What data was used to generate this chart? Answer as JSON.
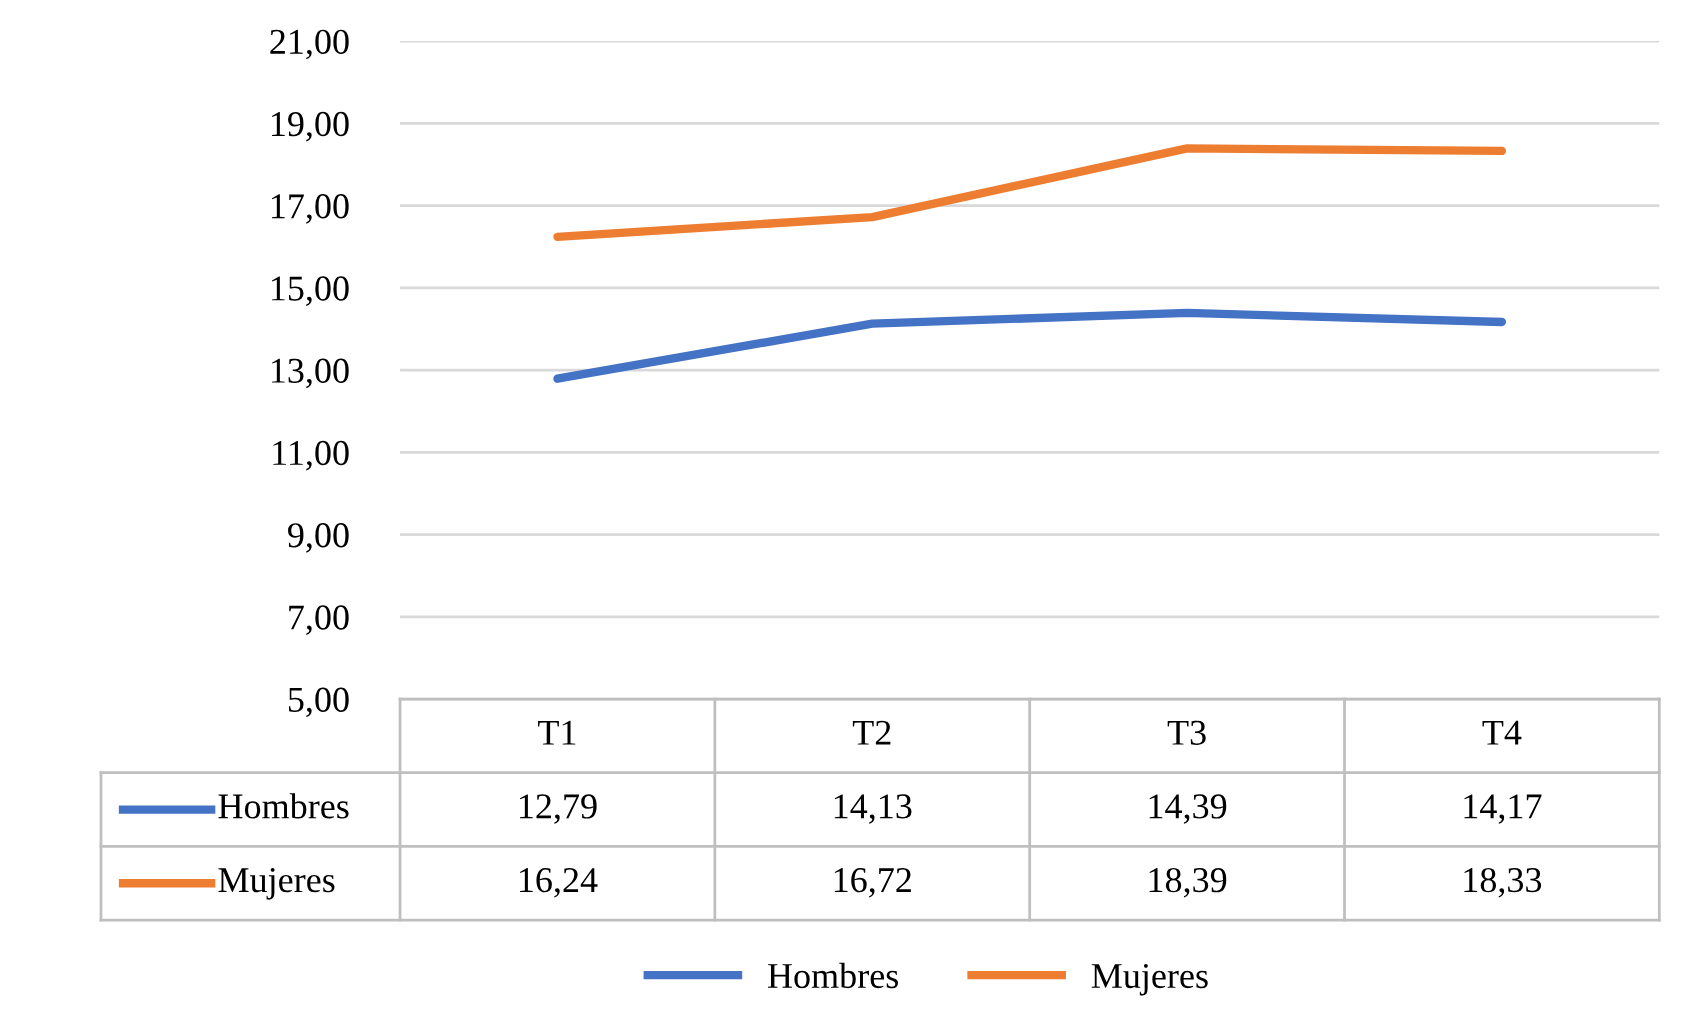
{
  "chart_data": {
    "type": "line",
    "categories": [
      "T1",
      "T2",
      "T3",
      "T4"
    ],
    "series": [
      {
        "name": "Hombres",
        "color": "#4472c4",
        "values": [
          12.79,
          14.13,
          14.39,
          14.17
        ],
        "value_labels": [
          "12,79",
          "14,13",
          "14,39",
          "14,17"
        ]
      },
      {
        "name": "Mujeres",
        "color": "#ed7d31",
        "values": [
          16.24,
          16.72,
          18.39,
          18.33
        ],
        "value_labels": [
          "16,24",
          "16,72",
          "18,39",
          "18,33"
        ]
      }
    ],
    "ylim": [
      5,
      21
    ],
    "yticks": [
      {
        "value": 5,
        "label": "5,00"
      },
      {
        "value": 7,
        "label": "7,00"
      },
      {
        "value": 9,
        "label": "9,00"
      },
      {
        "value": 11,
        "label": "11,00"
      },
      {
        "value": 13,
        "label": "13,00"
      },
      {
        "value": 15,
        "label": "15,00"
      },
      {
        "value": 17,
        "label": "17,00"
      },
      {
        "value": 19,
        "label": "19,00"
      },
      {
        "value": 21,
        "label": "21,00"
      }
    ],
    "grid": "y",
    "legend": "bottom",
    "marker": "none",
    "line_style": "solid"
  }
}
